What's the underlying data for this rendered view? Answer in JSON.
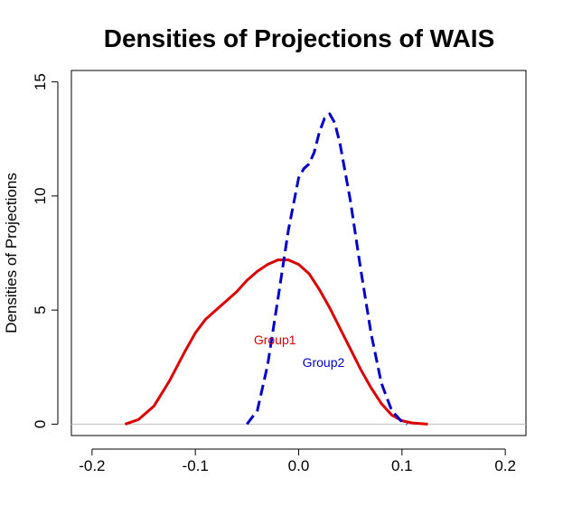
{
  "chart_data": {
    "type": "line",
    "title": "Densities of Projections of WAIS",
    "xlabel": "",
    "ylabel": "Densities of Projections",
    "xlim": [
      -0.22,
      0.22
    ],
    "ylim": [
      -0.5,
      15.5
    ],
    "x_ticks": [
      -0.2,
      -0.1,
      0.0,
      0.1,
      0.2
    ],
    "x_tick_labels": [
      "-0.2",
      "-0.1",
      "0.0",
      "0.1",
      "0.2"
    ],
    "y_ticks": [
      0,
      5,
      10,
      15
    ],
    "y_tick_labels": [
      "0",
      "5",
      "10",
      "15"
    ],
    "grid": false,
    "baseline": 0,
    "colors": {
      "baseline": "#bfbfbf"
    },
    "series": [
      {
        "name": "Group1",
        "color": "#dd0000",
        "style": "solid",
        "x": [
          -0.168,
          -0.155,
          -0.14,
          -0.125,
          -0.11,
          -0.1,
          -0.09,
          -0.08,
          -0.07,
          -0.06,
          -0.05,
          -0.04,
          -0.03,
          -0.02,
          -0.01,
          0.0,
          0.01,
          0.02,
          0.03,
          0.04,
          0.05,
          0.06,
          0.07,
          0.08,
          0.09,
          0.1,
          0.11,
          0.125
        ],
        "y": [
          0.0,
          0.2,
          0.8,
          1.9,
          3.2,
          4.0,
          4.6,
          5.0,
          5.4,
          5.8,
          6.3,
          6.7,
          7.0,
          7.2,
          7.2,
          7.0,
          6.6,
          5.9,
          5.1,
          4.2,
          3.3,
          2.4,
          1.6,
          0.9,
          0.4,
          0.15,
          0.05,
          0.0
        ]
      },
      {
        "name": "Group2",
        "color": "#0000cc",
        "style": "dashed",
        "x": [
          -0.05,
          -0.04,
          -0.03,
          -0.02,
          -0.01,
          0.0,
          0.005,
          0.01,
          0.015,
          0.02,
          0.025,
          0.03,
          0.035,
          0.04,
          0.05,
          0.06,
          0.07,
          0.08,
          0.09,
          0.1,
          0.105
        ],
        "y": [
          0.0,
          0.6,
          2.6,
          5.5,
          8.5,
          10.8,
          11.2,
          11.4,
          11.9,
          12.8,
          13.4,
          13.6,
          13.2,
          12.3,
          9.8,
          6.8,
          4.0,
          1.8,
          0.6,
          0.1,
          0.0
        ]
      }
    ],
    "annotations": [
      {
        "text": "Group1",
        "x": -0.023,
        "y": 3.7,
        "color": "#dd0000"
      },
      {
        "text": "Group2",
        "x": 0.024,
        "y": 2.7,
        "color": "#0000cc"
      }
    ]
  }
}
